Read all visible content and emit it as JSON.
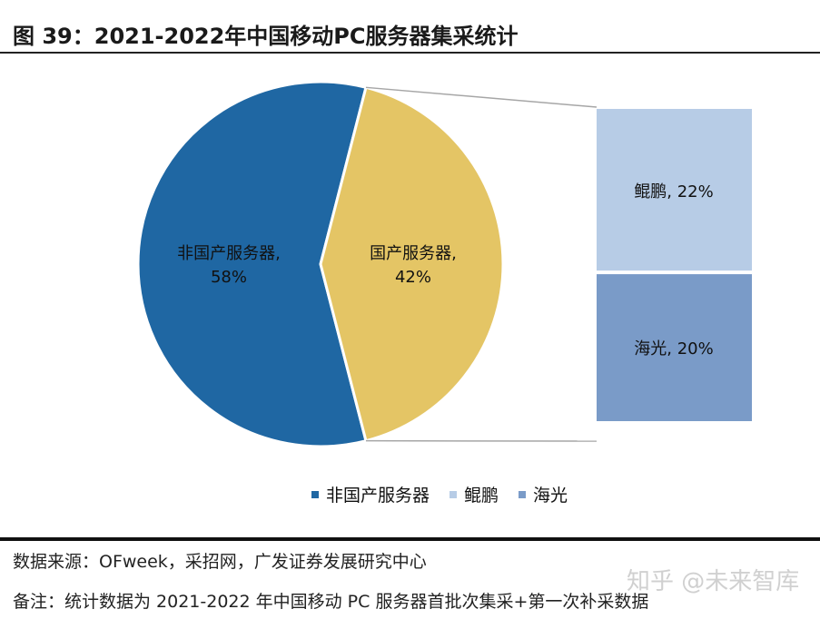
{
  "title": "图 39：2021-2022年中国移动PC服务器集采统计",
  "chart_data": {
    "type": "pie",
    "subtype": "pie-of-bar",
    "title": "图 39：2021-2022年中国移动PC服务器集采统计",
    "slices": [
      {
        "name": "非国产服务器",
        "value": 58,
        "label": "非国产服务器,",
        "value_label": "58%",
        "color": "#1f67a3"
      },
      {
        "name": "国产服务器",
        "value": 42,
        "label": "国产服务器,",
        "value_label": "42%",
        "color": "#e4c565"
      }
    ],
    "breakdown": [
      {
        "name": "鲲鹏",
        "value": 22,
        "label": "鲲鹏, 22%",
        "color": "#b7cce6"
      },
      {
        "name": "海光",
        "value": 20,
        "label": "海光, 20%",
        "color": "#7a9bc8"
      }
    ],
    "legend": {
      "placement": "bottom",
      "entries": [
        {
          "name": "非国产服务器",
          "color": "#1f67a3"
        },
        {
          "name": "鲲鹏",
          "color": "#b7cce6"
        },
        {
          "name": "海光",
          "color": "#7a9bc8"
        }
      ]
    }
  },
  "footer": {
    "source": "数据来源：OFweek，采招网，广发证券发展研究中心",
    "note": "备注：统计数据为 2021-2022 年中国移动 PC 服务器首批次集采+第一次补采数据"
  },
  "watermark": "知乎 @未来智库"
}
